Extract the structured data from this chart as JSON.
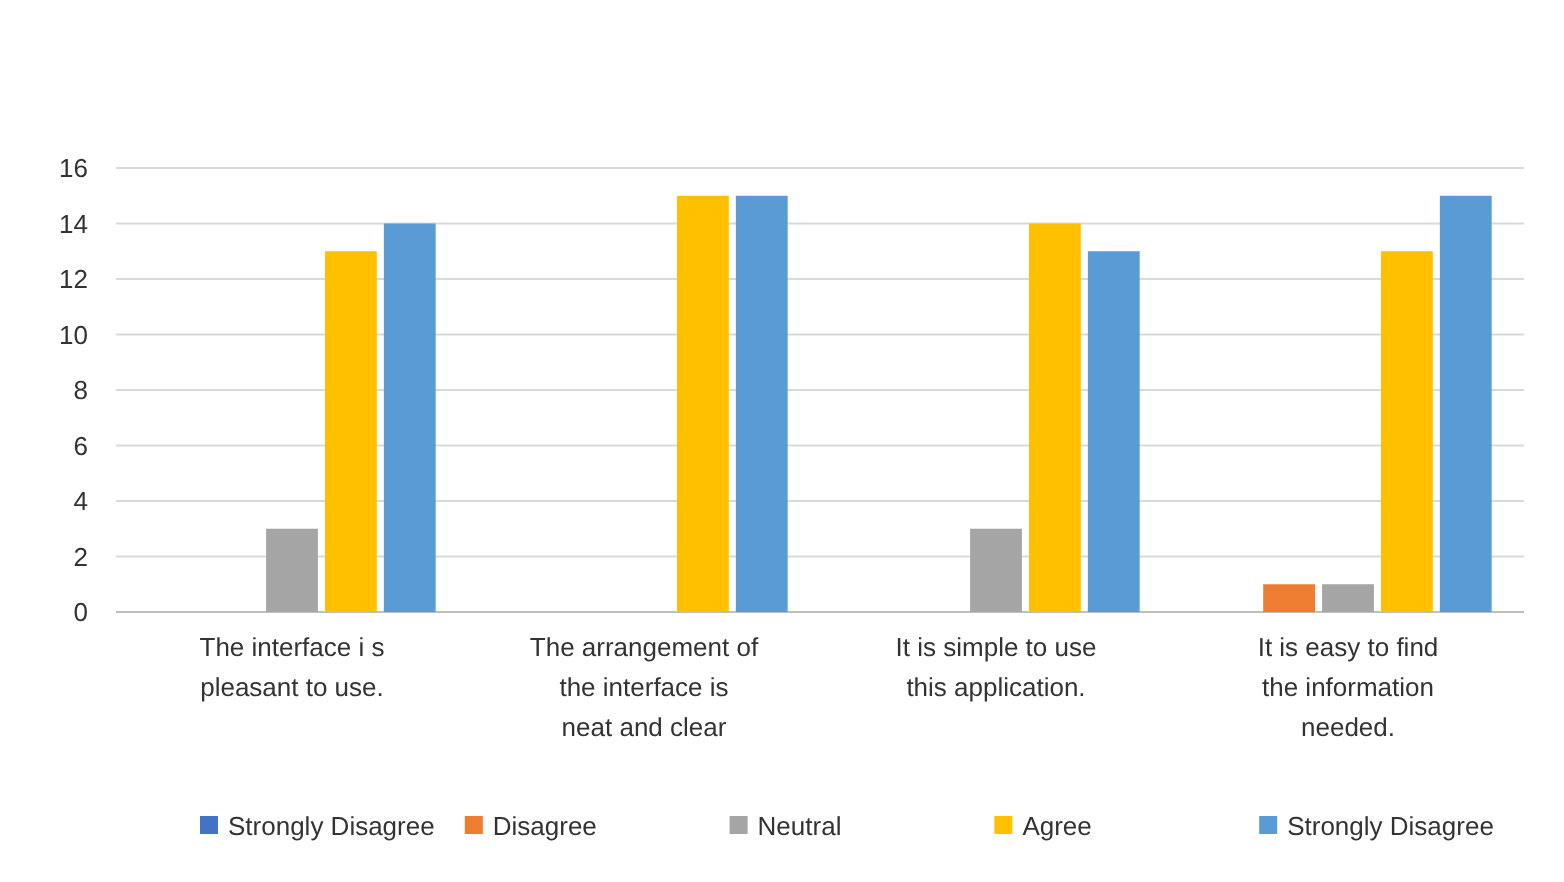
{
  "chart_data": {
    "type": "bar",
    "categories": [
      "The interface i s pleasant to use.",
      "The arrangement of the interface is neat and clear",
      "It is simple to use this application.",
      "It is easy to find the information needed."
    ],
    "series": [
      {
        "name": "Strongly Disagree",
        "color": "#4472c4",
        "values": [
          0,
          0,
          0,
          0
        ]
      },
      {
        "name": "Disagree",
        "color": "#ed7d31",
        "values": [
          0,
          0,
          0,
          1
        ]
      },
      {
        "name": "Neutral",
        "color": "#a5a5a5",
        "values": [
          3,
          0,
          3,
          1
        ]
      },
      {
        "name": "Agree",
        "color": "#ffc000",
        "values": [
          13,
          15,
          14,
          13
        ]
      },
      {
        "name": "Strongly Disagree",
        "color": "#5b9bd5",
        "values": [
          14,
          15,
          13,
          15
        ]
      }
    ],
    "ylim": [
      0,
      16
    ],
    "yticks": [
      0,
      2,
      4,
      6,
      8,
      10,
      12,
      14,
      16
    ],
    "grid": "y",
    "legend": "bottom"
  }
}
